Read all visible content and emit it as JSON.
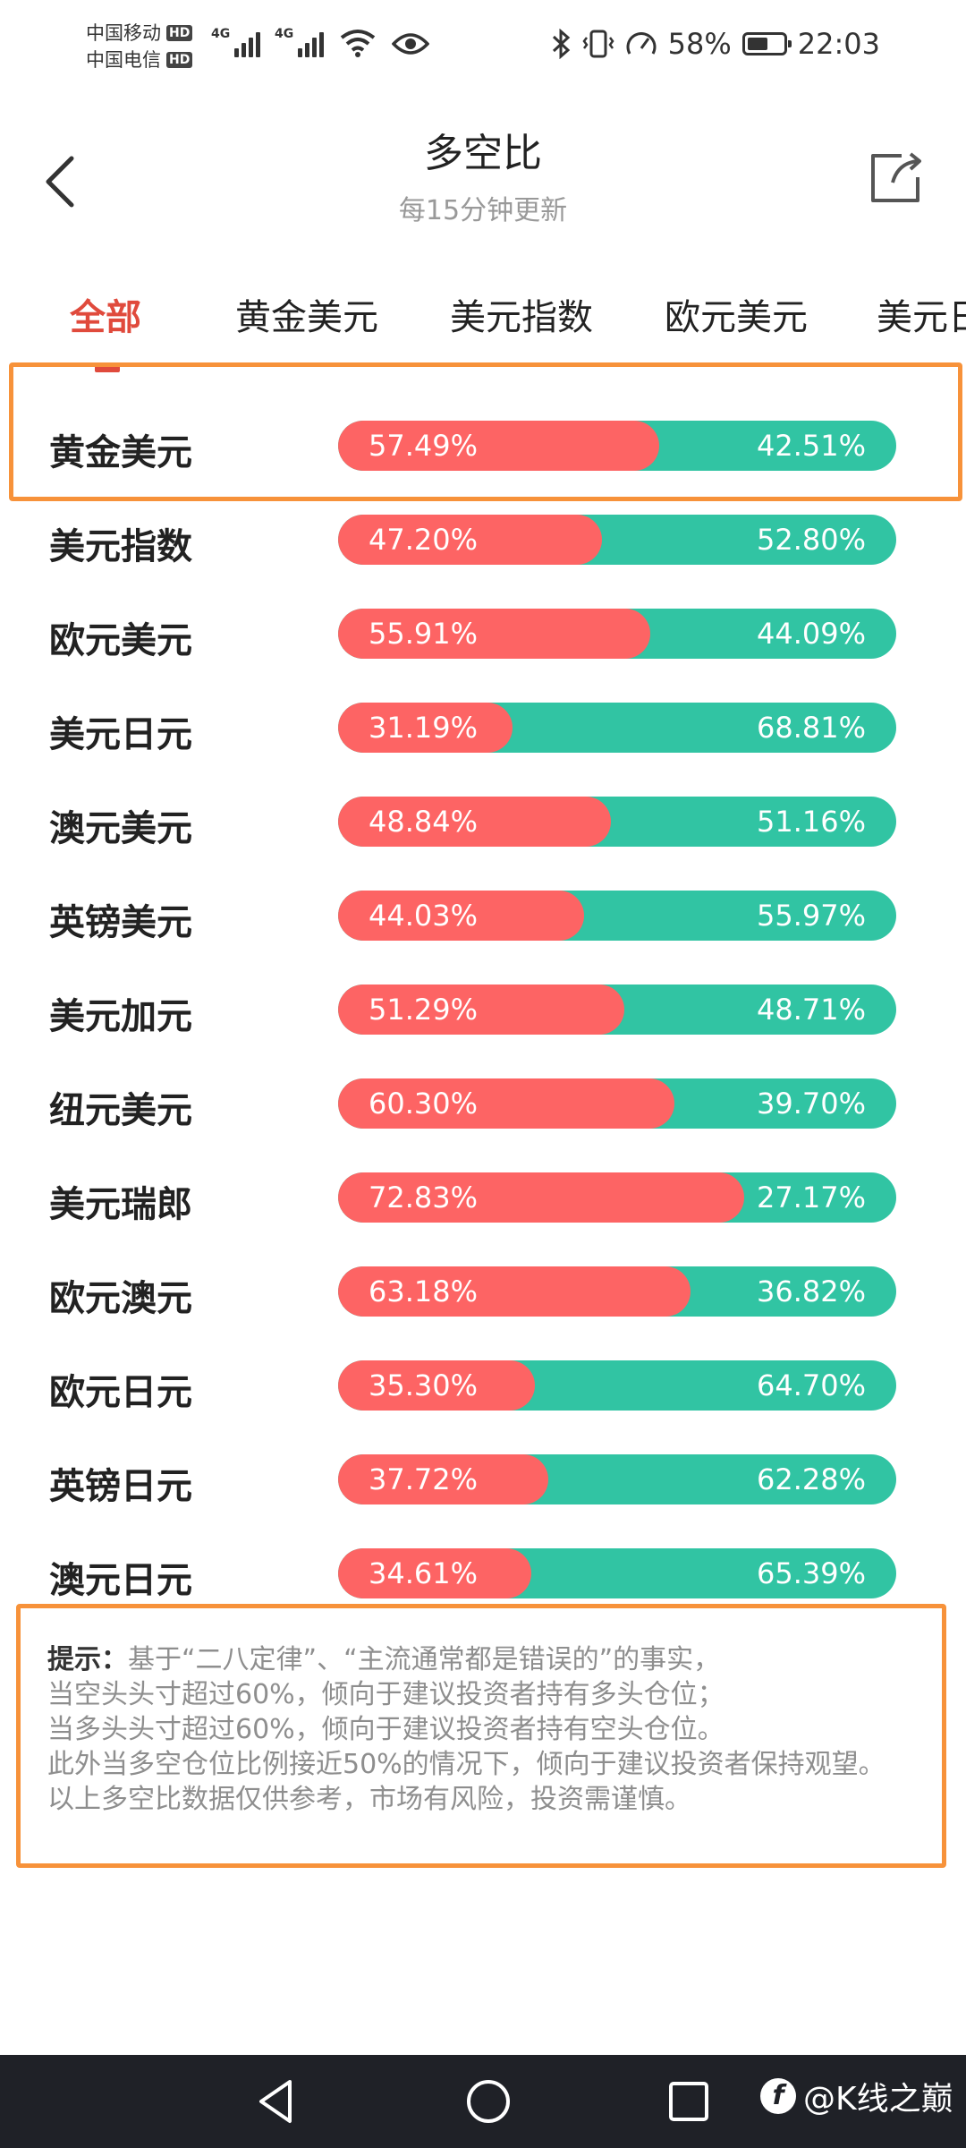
{
  "status_bar": {
    "carrier1": "中国移动",
    "carrier2": "中国电信",
    "hd": "HD",
    "network": "4G",
    "battery": "58%",
    "battery_level": 0.58,
    "time": "22:03"
  },
  "header": {
    "title": "多空比",
    "subtitle": "每15分钟更新"
  },
  "tabs": [
    {
      "label": "全部",
      "active": true
    },
    {
      "label": "黄金美元"
    },
    {
      "label": "美元指数"
    },
    {
      "label": "欧元美元"
    },
    {
      "label": "美元日元"
    }
  ],
  "rows": [
    {
      "name": "黄金美元",
      "long": "57.49%",
      "short": "42.51%",
      "long_value": 57.49
    },
    {
      "name": "美元指数",
      "long": "47.20%",
      "short": "52.80%",
      "long_value": 47.2
    },
    {
      "name": "欧元美元",
      "long": "55.91%",
      "short": "44.09%",
      "long_value": 55.91
    },
    {
      "name": "美元日元",
      "long": "31.19%",
      "short": "68.81%",
      "long_value": 31.19
    },
    {
      "name": "澳元美元",
      "long": "48.84%",
      "short": "51.16%",
      "long_value": 48.84
    },
    {
      "name": "英镑美元",
      "long": "44.03%",
      "short": "55.97%",
      "long_value": 44.03
    },
    {
      "name": "美元加元",
      "long": "51.29%",
      "short": "48.71%",
      "long_value": 51.29
    },
    {
      "name": "纽元美元",
      "long": "60.30%",
      "short": "39.70%",
      "long_value": 60.3
    },
    {
      "name": "美元瑞郎",
      "long": "72.83%",
      "short": "27.17%",
      "long_value": 72.83
    },
    {
      "name": "欧元澳元",
      "long": "63.18%",
      "short": "36.82%",
      "long_value": 63.18
    },
    {
      "name": "欧元日元",
      "long": "35.30%",
      "short": "64.70%",
      "long_value": 35.3
    },
    {
      "name": "英镑日元",
      "long": "37.72%",
      "short": "62.28%",
      "long_value": 37.72
    },
    {
      "name": "澳元日元",
      "long": "34.61%",
      "short": "65.39%",
      "long_value": 34.61
    }
  ],
  "tip": {
    "label": "提示：",
    "line1": "基于“二八定律”、“主流通常都是错误的”的事实，",
    "line2": "当空头头寸超过60%，倾向于建议投资者持有多头仓位；",
    "line3": "当多头头寸超过60%，倾向于建议投资者持有空头仓位。",
    "line4": "此外当多空仓位比例接近50%的情况下，倾向于建议投资者保持观望。",
    "line5": "以上多空比数据仅供参考，市场有风险，投资需谨慎。"
  },
  "watermark": "@K线之巅",
  "colors": {
    "long": "#fd6464",
    "short": "#31c4a3",
    "accent": "#e04a3c",
    "highlight": "#f7923a"
  },
  "icons": {
    "back": "chevron-left-icon",
    "share": "share-icon"
  }
}
